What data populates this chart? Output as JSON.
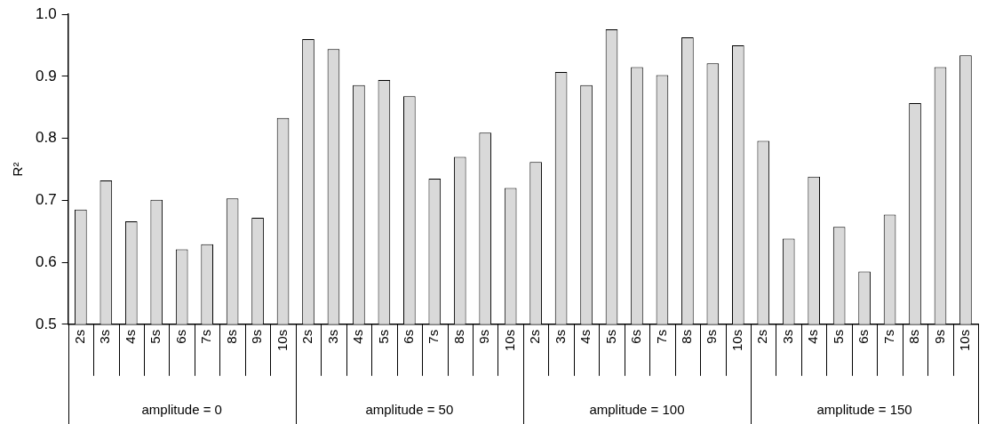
{
  "chart_data": {
    "type": "bar",
    "ylabel": "R²",
    "categories": [
      "2s",
      "3s",
      "4s",
      "5s",
      "6s",
      "7s",
      "8s",
      "9s",
      "10s",
      "2s",
      "3s",
      "4s",
      "5s",
      "6s",
      "7s",
      "8s",
      "9s",
      "10s",
      "2s",
      "3s",
      "4s",
      "5s",
      "6s",
      "7s",
      "8s",
      "9s",
      "10s",
      "2s",
      "3s",
      "4s",
      "5s",
      "6s",
      "7s",
      "8s",
      "9s",
      "10s"
    ],
    "values": [
      0.685,
      0.732,
      0.666,
      0.701,
      0.621,
      0.629,
      0.703,
      0.672,
      0.833,
      0.96,
      0.944,
      0.886,
      0.894,
      0.868,
      0.735,
      0.77,
      0.809,
      0.72,
      0.762,
      0.907,
      0.886,
      0.976,
      0.915,
      0.902,
      0.963,
      0.921,
      0.95,
      0.796,
      0.638,
      0.738,
      0.657,
      0.585,
      0.677,
      0.857,
      0.915,
      0.934
    ],
    "color": "#d9d9d9",
    "ylim": [
      0.5,
      1.0
    ],
    "yticks": [
      0.5,
      0.6,
      0.7,
      0.8,
      0.9,
      {
        "value": 1.0,
        "label": "1.0"
      }
    ],
    "annotations": [
      "amplitude = 0",
      "amplitude = 50",
      "amplitude = 100",
      "amplitude = 150"
    ],
    "grid": false,
    "legend": false
  }
}
